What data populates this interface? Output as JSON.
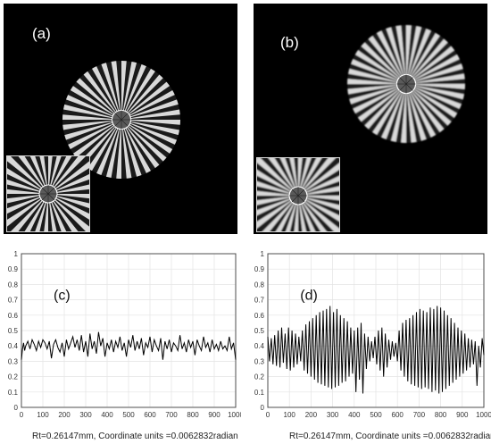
{
  "panels": {
    "a": {
      "label": "(a)"
    },
    "b": {
      "label": "(b)"
    }
  },
  "colors": {
    "background": "#000000",
    "spoke_light": "#d9d9d9",
    "line": "#000000",
    "grid": "#e3e3e3"
  },
  "chart_data": [
    {
      "type": "line",
      "panel_label": "(c)",
      "xlabel": "Rt=0.26147mm, Coordinate units =0.0062832radian",
      "xlim": [
        0,
        1000
      ],
      "ylim": [
        0,
        1
      ],
      "xticks": [
        "0",
        "100",
        "200",
        "300",
        "400",
        "500",
        "600",
        "700",
        "800",
        "900",
        "1000"
      ],
      "yticks": [
        "0",
        "0.1",
        "0.2",
        "0.3",
        "0.4",
        "0.5",
        "0.6",
        "0.7",
        "0.8",
        "0.9",
        "1"
      ],
      "grid": true,
      "series": [
        {
          "x": [
            0,
            5,
            10,
            15,
            20,
            30,
            40,
            50,
            60,
            70,
            80,
            90,
            100,
            110,
            120,
            130,
            140,
            150,
            160,
            170,
            180,
            190,
            200,
            210,
            220,
            230,
            240,
            250,
            260,
            270,
            280,
            290,
            300,
            310,
            320,
            330,
            340,
            350,
            360,
            370,
            380,
            390,
            400,
            410,
            420,
            430,
            440,
            450,
            460,
            470,
            480,
            490,
            500,
            510,
            520,
            530,
            540,
            550,
            560,
            570,
            580,
            590,
            600,
            610,
            620,
            630,
            640,
            650,
            660,
            670,
            680,
            690,
            700,
            710,
            720,
            730,
            740,
            750,
            760,
            770,
            780,
            790,
            800,
            810,
            820,
            830,
            840,
            850,
            860,
            870,
            880,
            890,
            900,
            910,
            920,
            930,
            940,
            950,
            960,
            970,
            980,
            990,
            1000
          ],
          "values": [
            0.31,
            0.38,
            0.42,
            0.37,
            0.4,
            0.43,
            0.38,
            0.44,
            0.41,
            0.37,
            0.43,
            0.39,
            0.44,
            0.42,
            0.38,
            0.43,
            0.32,
            0.41,
            0.44,
            0.39,
            0.36,
            0.42,
            0.33,
            0.44,
            0.38,
            0.42,
            0.46,
            0.39,
            0.44,
            0.37,
            0.47,
            0.36,
            0.43,
            0.33,
            0.48,
            0.38,
            0.43,
            0.35,
            0.49,
            0.4,
            0.45,
            0.33,
            0.42,
            0.38,
            0.44,
            0.36,
            0.43,
            0.39,
            0.46,
            0.37,
            0.42,
            0.33,
            0.44,
            0.39,
            0.47,
            0.37,
            0.43,
            0.38,
            0.45,
            0.34,
            0.42,
            0.39,
            0.46,
            0.36,
            0.44,
            0.4,
            0.37,
            0.45,
            0.31,
            0.43,
            0.38,
            0.44,
            0.36,
            0.42,
            0.4,
            0.37,
            0.47,
            0.38,
            0.42,
            0.36,
            0.44,
            0.39,
            0.43,
            0.34,
            0.44,
            0.4,
            0.37,
            0.46,
            0.39,
            0.42,
            0.36,
            0.44,
            0.38,
            0.41,
            0.37,
            0.43,
            0.38,
            0.4,
            0.37,
            0.46,
            0.38,
            0.42,
            0.31
          ]
        }
      ]
    },
    {
      "type": "line",
      "panel_label": "(d)",
      "xlabel": "Rt=0.26147mm, Coordinate units =0.0062832radian",
      "xlim": [
        0,
        1000
      ],
      "ylim": [
        0,
        1
      ],
      "xticks": [
        "0",
        "100",
        "200",
        "300",
        "400",
        "500",
        "600",
        "700",
        "800",
        "900",
        "1000"
      ],
      "yticks": [
        "0",
        "0.1",
        "0.2",
        "0.3",
        "0.4",
        "0.5",
        "0.6",
        "0.7",
        "0.8",
        "0.9",
        "1"
      ],
      "grid": true,
      "series": [
        {
          "x": [
            0,
            8,
            16,
            24,
            32,
            40,
            48,
            56,
            64,
            72,
            80,
            88,
            96,
            104,
            112,
            120,
            128,
            136,
            144,
            152,
            160,
            168,
            176,
            184,
            192,
            200,
            208,
            216,
            224,
            232,
            240,
            248,
            256,
            264,
            272,
            280,
            288,
            296,
            304,
            312,
            320,
            328,
            336,
            344,
            352,
            360,
            368,
            376,
            384,
            392,
            400,
            408,
            416,
            424,
            432,
            440,
            448,
            456,
            464,
            472,
            480,
            488,
            496,
            504,
            512,
            520,
            528,
            536,
            544,
            552,
            560,
            568,
            576,
            584,
            592,
            600,
            608,
            616,
            624,
            632,
            640,
            648,
            656,
            664,
            672,
            680,
            688,
            696,
            704,
            712,
            720,
            728,
            736,
            744,
            752,
            760,
            768,
            776,
            784,
            792,
            800,
            808,
            816,
            824,
            832,
            840,
            848,
            856,
            864,
            872,
            880,
            888,
            896,
            904,
            912,
            920,
            928,
            936,
            944,
            952,
            960,
            968,
            976,
            984,
            992,
            1000
          ],
          "values": [
            0.46,
            0.3,
            0.45,
            0.28,
            0.47,
            0.27,
            0.5,
            0.26,
            0.52,
            0.29,
            0.48,
            0.25,
            0.52,
            0.24,
            0.5,
            0.26,
            0.48,
            0.28,
            0.46,
            0.3,
            0.5,
            0.24,
            0.54,
            0.22,
            0.56,
            0.2,
            0.58,
            0.18,
            0.6,
            0.16,
            0.62,
            0.15,
            0.63,
            0.14,
            0.64,
            0.13,
            0.66,
            0.12,
            0.62,
            0.13,
            0.64,
            0.14,
            0.6,
            0.16,
            0.58,
            0.17,
            0.56,
            0.2,
            0.52,
            0.22,
            0.5,
            0.1,
            0.52,
            0.18,
            0.55,
            0.09,
            0.48,
            0.25,
            0.46,
            0.3,
            0.43,
            0.32,
            0.46,
            0.28,
            0.5,
            0.24,
            0.52,
            0.2,
            0.48,
            0.26,
            0.44,
            0.31,
            0.43,
            0.33,
            0.42,
            0.3,
            0.5,
            0.24,
            0.55,
            0.2,
            0.57,
            0.17,
            0.58,
            0.15,
            0.6,
            0.14,
            0.62,
            0.13,
            0.64,
            0.12,
            0.63,
            0.13,
            0.62,
            0.12,
            0.65,
            0.1,
            0.64,
            0.11,
            0.66,
            0.09,
            0.65,
            0.1,
            0.63,
            0.12,
            0.6,
            0.14,
            0.58,
            0.16,
            0.55,
            0.18,
            0.52,
            0.2,
            0.5,
            0.22,
            0.48,
            0.24,
            0.45,
            0.26,
            0.44,
            0.28,
            0.43,
            0.14,
            0.4,
            0.26,
            0.45,
            0.34
          ]
        }
      ]
    }
  ]
}
